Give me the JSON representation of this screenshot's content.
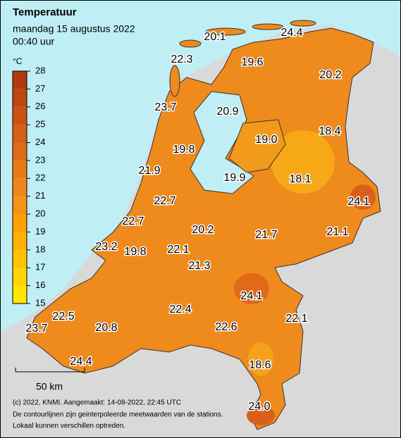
{
  "header": {
    "title": "Temperatuur",
    "date": "maandag 15 augustus 2022",
    "time": "00:40 uur"
  },
  "legend": {
    "unit": "°C",
    "ticks": [
      15,
      16,
      17,
      18,
      19,
      20,
      21,
      22,
      23,
      24,
      25,
      26,
      27,
      28
    ]
  },
  "stations": [
    "20.1",
    "24.4",
    "22.3",
    "19.6",
    "20.2",
    "23.7",
    "20.9",
    "19.0",
    "18.4",
    "19.8",
    "21.9",
    "19.9",
    "18.1",
    "24.1",
    "22.7",
    "22.7",
    "20.2",
    "21.7",
    "21.1",
    "23.2",
    "19.8",
    "22.1",
    "21.3",
    "24.1",
    "22.4",
    "22.1",
    "22.5",
    "23.7",
    "20.8",
    "22.6",
    "18.6",
    "24.4",
    "24.0"
  ],
  "scale": "50 km",
  "footer": [
    "(c) 2022, KNMI. Aangemaakt: 14-08-2022, 22:45 UTC",
    "De contourlijnen zijn geinterpoleerde meetwaarden van de stations.",
    "Lokaal kunnen verschillen optreden."
  ]
}
